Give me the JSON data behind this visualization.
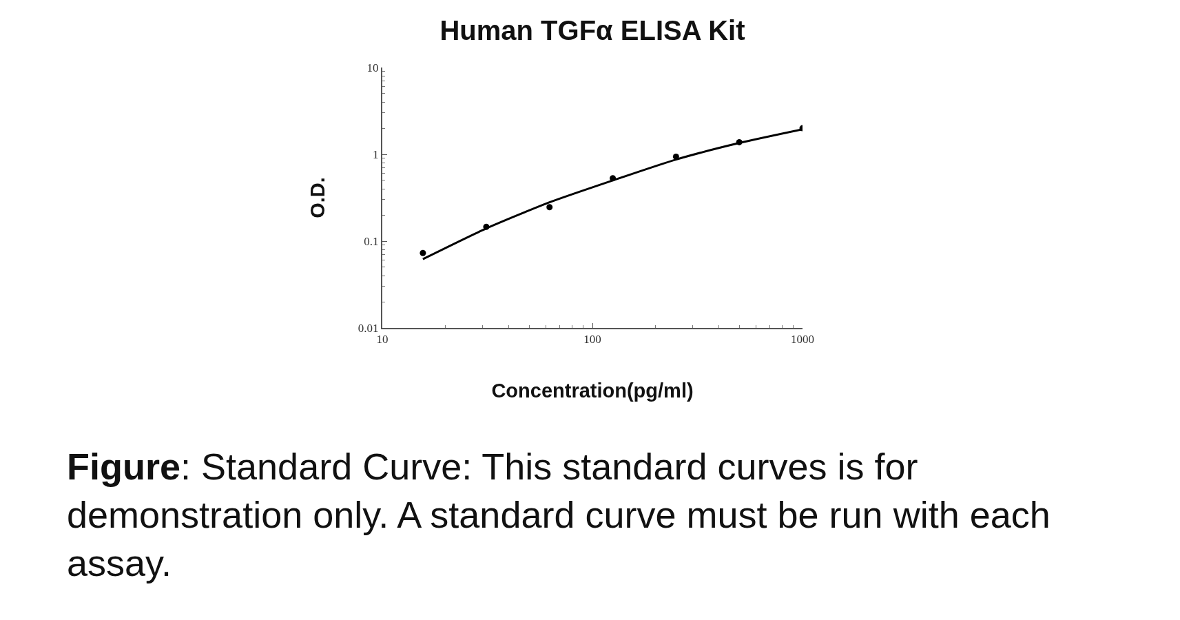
{
  "chart_data": {
    "type": "scatter",
    "title": "Human TGFα ELISA Kit",
    "xlabel": "Concentration(pg/ml)",
    "ylabel": "O.D.",
    "log": "xy",
    "marker": "circle",
    "xlim": [
      10,
      1000
    ],
    "xticks": [
      10,
      100,
      1000
    ],
    "ylim": [
      0.01,
      10
    ],
    "yticks": [
      0.01,
      0.1,
      1,
      10
    ],
    "series": [
      {
        "color": "#000000",
        "x": [
          15.6,
          31.25,
          62.5,
          125,
          250,
          500,
          1000
        ],
        "values": [
          0.073,
          0.146,
          0.246,
          0.53,
          0.94,
          1.38,
          2.0
        ]
      },
      {
        "type": "line",
        "marker": "none",
        "color": "#000000",
        "x": [
          15.6,
          31.25,
          62.5,
          125,
          250,
          500,
          1000
        ],
        "values": [
          0.062,
          0.14,
          0.28,
          0.5,
          0.87,
          1.35,
          1.94
        ]
      }
    ],
    "annotations": [
      "Figure: Standard Curve: This standard curves is for demonstration only. A standard curve must be run with each assay."
    ]
  }
}
